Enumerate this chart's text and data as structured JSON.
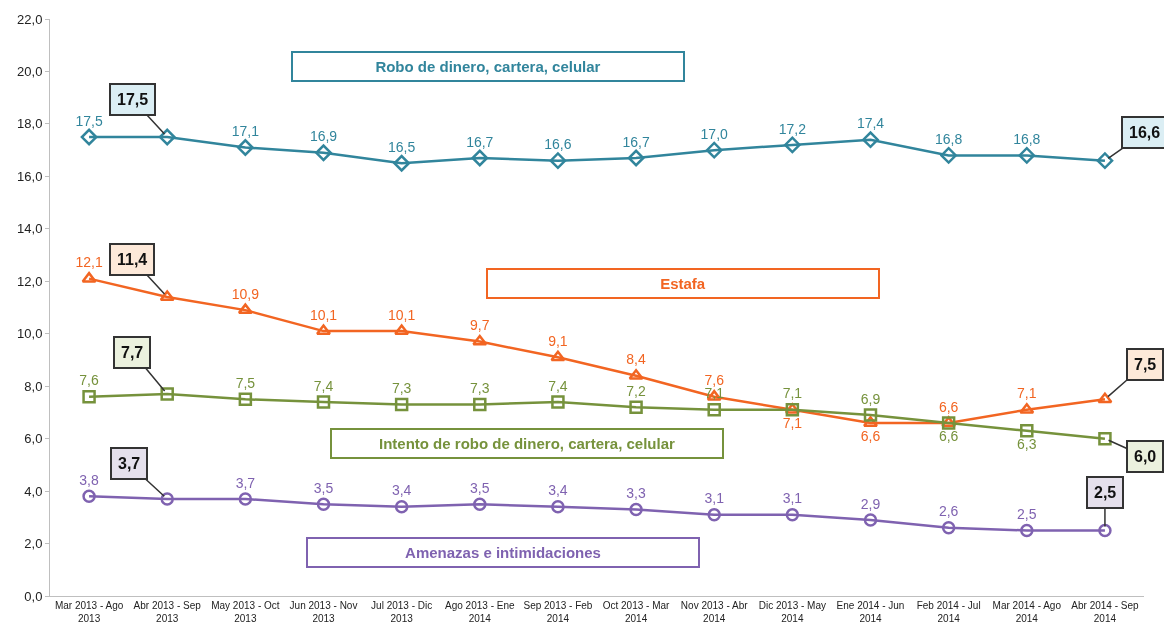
{
  "chart_data": {
    "type": "line",
    "categories": [
      "Mar 2013 - Ago 2013",
      "Abr 2013 - Sep 2013",
      "May 2013 - Oct 2013",
      "Jun 2013 - Nov 2013",
      "Jul 2013 - Dic 2013",
      "Ago 2013 - Ene 2014",
      "Sep 2013 - Feb 2014",
      "Oct 2013 - Mar 2014",
      "Nov 2013 - Abr 2014",
      "Dic 2013 - May 2014",
      "Ene 2014 - Jun 2014",
      "Feb 2014 - Jul 2014",
      "Mar 2014 - Ago 2014",
      "Abr 2014 - Sep 2014"
    ],
    "ylim": [
      0,
      22
    ],
    "yticks": [
      {
        "value": 0,
        "label": "0,0"
      },
      {
        "value": 2,
        "label": "2,0"
      },
      {
        "value": 4,
        "label": "4,0"
      },
      {
        "value": 6,
        "label": "6,0"
      },
      {
        "value": 8,
        "label": "8,0"
      },
      {
        "value": 10,
        "label": "10,0"
      },
      {
        "value": 12,
        "label": "12,0"
      },
      {
        "value": 14,
        "label": "14,0"
      },
      {
        "value": 16,
        "label": "16,0"
      },
      {
        "value": 18,
        "label": "18,0"
      },
      {
        "value": 20,
        "label": "20,0"
      },
      {
        "value": 22,
        "label": "22,0"
      }
    ],
    "legend": false,
    "series": [
      {
        "name": "Robo de dinero, cartera, celular",
        "color": "#31859c",
        "marker": "diamond",
        "values": [
          17.5,
          17.5,
          17.1,
          16.9,
          16.5,
          16.7,
          16.6,
          16.7,
          17.0,
          17.2,
          17.4,
          16.8,
          16.8,
          16.6
        ],
        "value_labels": [
          "17,5",
          "17,5",
          "17,1",
          "16,9",
          "16,5",
          "16,7",
          "16,6",
          "16,7",
          "17,0",
          "17,2",
          "17,4",
          "16,8",
          "16,8",
          "16,6"
        ]
      },
      {
        "name": "Estafa",
        "color": "#f26522",
        "marker": "triangle",
        "values": [
          12.1,
          11.4,
          10.9,
          10.1,
          10.1,
          9.7,
          9.1,
          8.4,
          7.6,
          7.1,
          6.6,
          6.6,
          7.1,
          7.5
        ],
        "value_labels": [
          "12,1",
          "11,4",
          "10,9",
          "10,1",
          "10,1",
          "9,7",
          "9,1",
          "8,4",
          "7,6",
          "7,1",
          "6,6",
          "6,6",
          "7,1",
          "7,5"
        ]
      },
      {
        "name": "Intento de robo de dinero, cartera, celular",
        "color": "#76923c",
        "marker": "square",
        "values": [
          7.6,
          7.7,
          7.5,
          7.4,
          7.3,
          7.3,
          7.4,
          7.2,
          7.1,
          7.1,
          6.9,
          6.6,
          6.3,
          6.0
        ],
        "value_labels": [
          "7,6",
          "7,7",
          "7,5",
          "7,4",
          "7,3",
          "7,3",
          "7,4",
          "7,2",
          "7,1",
          "7,1",
          "6,9",
          "6,6",
          "6,3",
          "6,0"
        ]
      },
      {
        "name": "Amenazas e intimidaciones",
        "color": "#7f62b0",
        "marker": "circle",
        "values": [
          3.8,
          3.7,
          3.7,
          3.5,
          3.4,
          3.5,
          3.4,
          3.3,
          3.1,
          3.1,
          2.9,
          2.6,
          2.5,
          2.5
        ],
        "value_labels": [
          "3,8",
          "3,7",
          "3,7",
          "3,5",
          "3,4",
          "3,5",
          "3,4",
          "3,3",
          "3,1",
          "3,1",
          "2,9",
          "2,6",
          "2,5",
          "2,5"
        ]
      }
    ]
  }
}
